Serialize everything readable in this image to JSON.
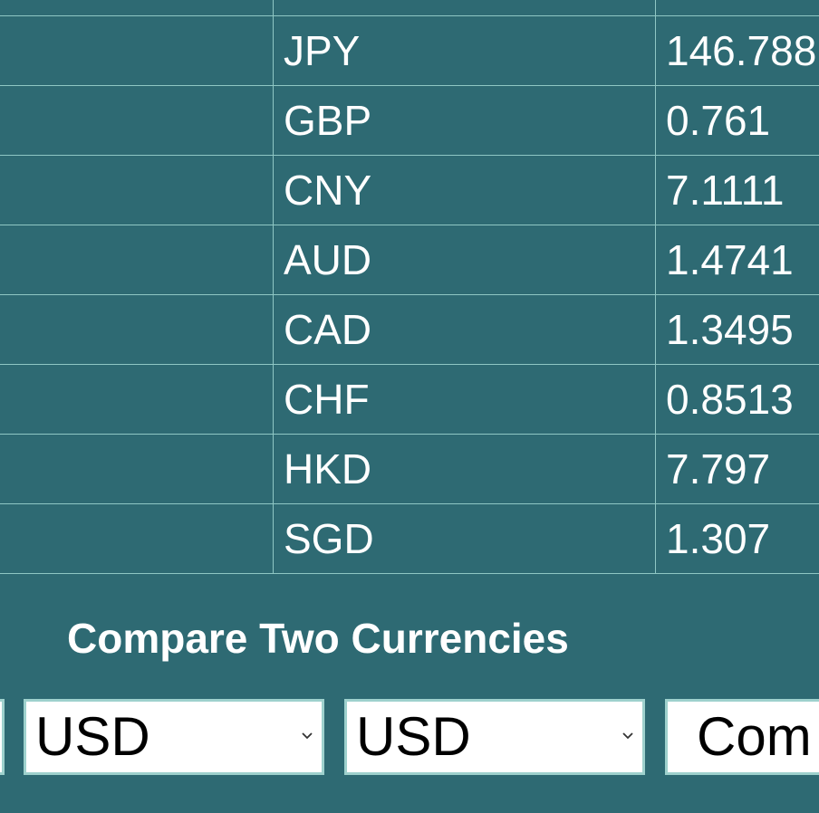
{
  "rates": [
    {
      "code": "",
      "rate": ""
    },
    {
      "code": "JPY",
      "rate": "146.788"
    },
    {
      "code": "GBP",
      "rate": "0.761"
    },
    {
      "code": "CNY",
      "rate": "7.1111"
    },
    {
      "code": "AUD",
      "rate": "1.4741"
    },
    {
      "code": "CAD",
      "rate": "1.3495"
    },
    {
      "code": "CHF",
      "rate": "0.8513"
    },
    {
      "code": "HKD",
      "rate": "7.797"
    },
    {
      "code": "SGD",
      "rate": "1.307"
    }
  ],
  "compare": {
    "title": "Compare Two Currencies",
    "from_currency": "USD",
    "to_currency": "USD",
    "button_label": "Com"
  },
  "colors": {
    "background": "#2e6a73",
    "border": "#8fc7c4",
    "text": "#ffffff"
  },
  "icons": {
    "select_arrow": "chevron-down-icon"
  }
}
